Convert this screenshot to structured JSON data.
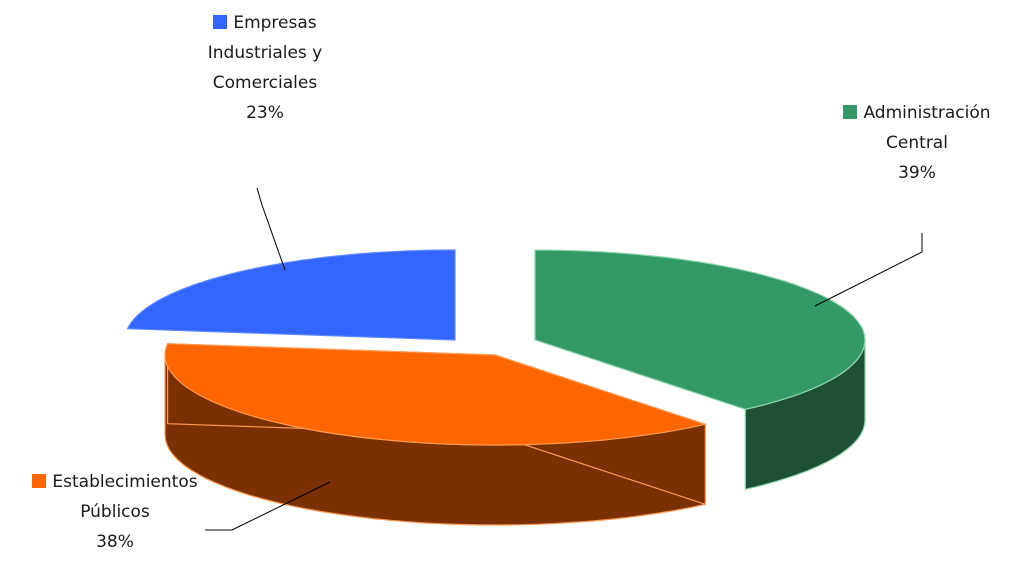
{
  "chart_data": {
    "type": "pie",
    "title": "",
    "legend": "none",
    "slices": [
      {
        "key": "admin",
        "label_lines": [
          "Administración",
          "Central"
        ],
        "percent_label": "39%",
        "value": 39,
        "color": "#339966",
        "side_color": "#1e5035",
        "edge_color": "#8fd6ad"
      },
      {
        "key": "est",
        "label_lines": [
          "Establecimientos",
          "Públicos"
        ],
        "percent_label": "38%",
        "value": 38,
        "color": "#ff6600",
        "side_color": "#7a3000",
        "edge_color": "#ff9a50"
      },
      {
        "key": "emp",
        "label_lines": [
          "Empresas",
          "Industriales y",
          "Comerciales"
        ],
        "percent_label": "23%",
        "value": 23,
        "color": "#3366ff",
        "side_color": "#1a3080",
        "edge_color": "#5e88ff"
      }
    ]
  }
}
